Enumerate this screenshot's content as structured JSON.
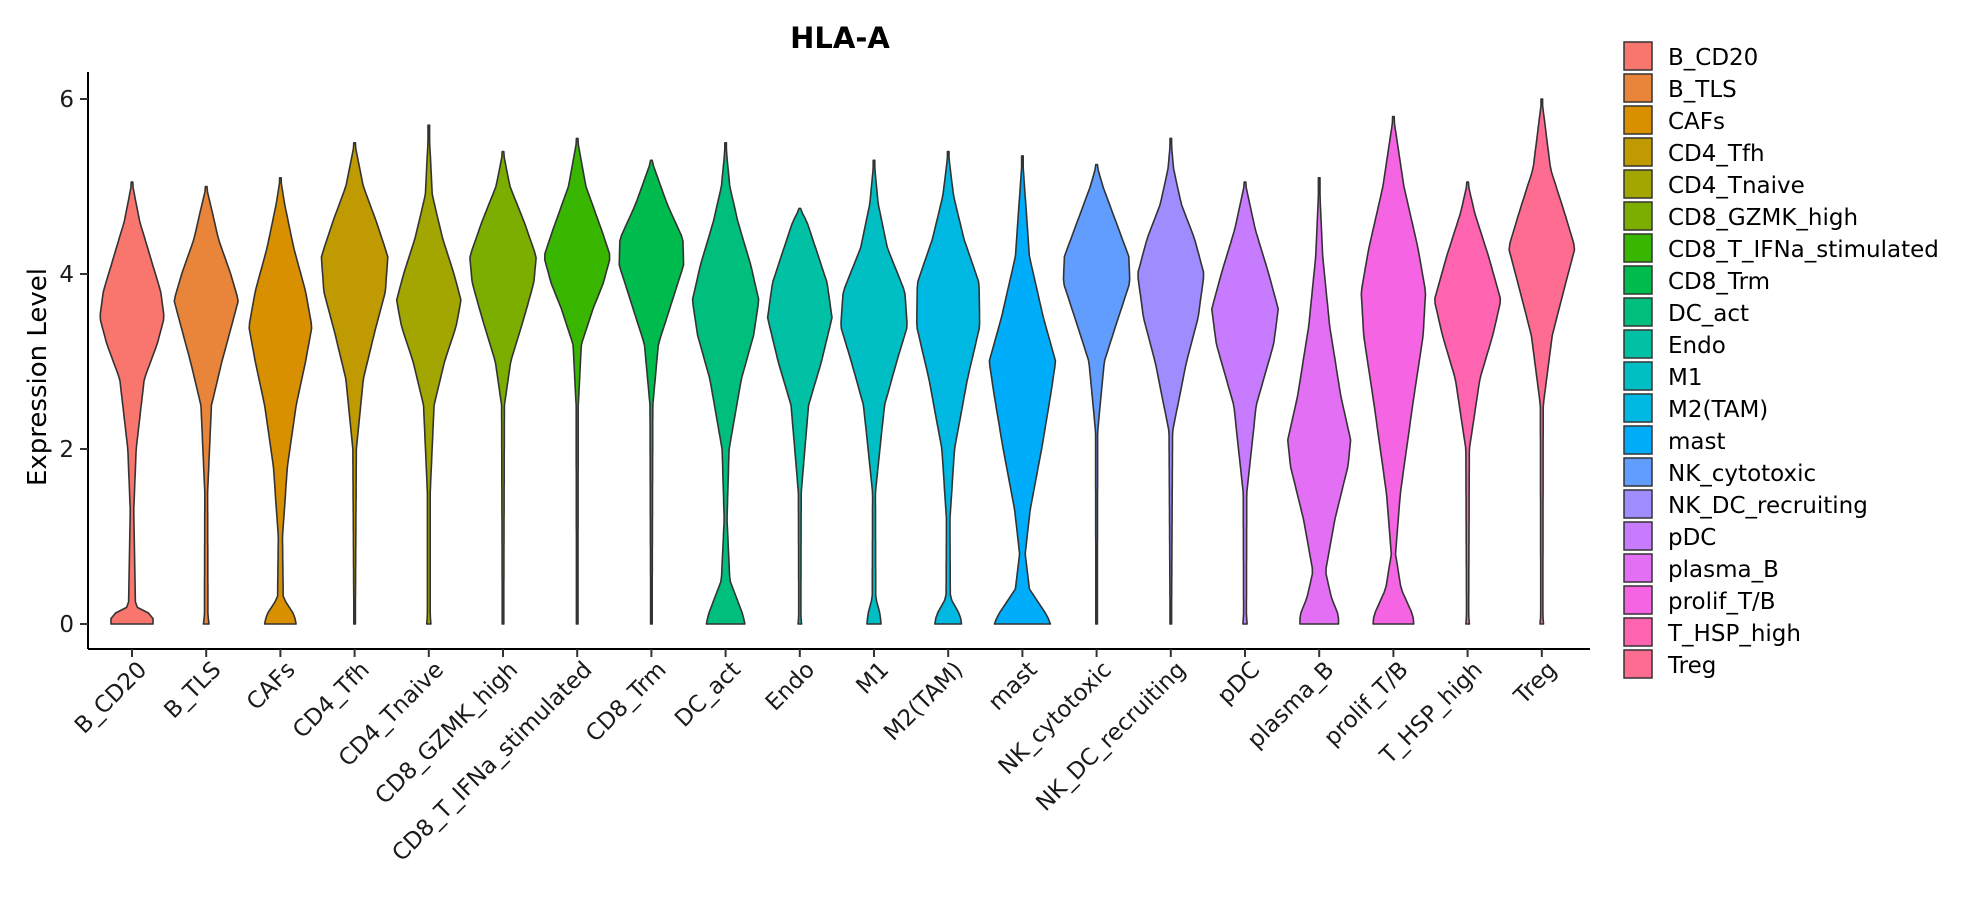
{
  "chart_data": {
    "type": "violin",
    "title": "HLA-A",
    "xlabel": "",
    "ylabel": "Expression Level",
    "ylim": [
      -0.3,
      6.3
    ],
    "yticks": [
      0,
      2,
      4,
      6
    ],
    "legend_position": "right",
    "categories": [
      {
        "name": "B_CD20",
        "color": "#F8766D",
        "max": 5.05,
        "dens": [
          [
            0,
            0.6
          ],
          [
            0.1,
            0.6
          ],
          [
            0.2,
            0.1
          ],
          [
            1.3,
            0.05
          ],
          [
            2.0,
            0.12
          ],
          [
            2.8,
            0.35
          ],
          [
            3.2,
            0.72
          ],
          [
            3.5,
            0.92
          ],
          [
            3.8,
            0.82
          ],
          [
            4.2,
            0.52
          ],
          [
            4.6,
            0.22
          ],
          [
            5.05,
            0
          ]
        ]
      },
      {
        "name": "B_TLS",
        "color": "#E8853A",
        "max": 5.0,
        "dens": [
          [
            0,
            0.08
          ],
          [
            0.1,
            0.05
          ],
          [
            1.5,
            0.04
          ],
          [
            2.5,
            0.15
          ],
          [
            3.0,
            0.45
          ],
          [
            3.4,
            0.72
          ],
          [
            3.7,
            0.92
          ],
          [
            4.0,
            0.7
          ],
          [
            4.4,
            0.35
          ],
          [
            4.8,
            0.12
          ],
          [
            5.0,
            0
          ]
        ]
      },
      {
        "name": "CAFs",
        "color": "#D89000",
        "max": 5.1,
        "dens": [
          [
            0,
            0.45
          ],
          [
            0.1,
            0.4
          ],
          [
            0.3,
            0.08
          ],
          [
            1.0,
            0.06
          ],
          [
            1.8,
            0.2
          ],
          [
            2.5,
            0.45
          ],
          [
            3.0,
            0.72
          ],
          [
            3.4,
            0.9
          ],
          [
            3.8,
            0.72
          ],
          [
            4.3,
            0.38
          ],
          [
            4.8,
            0.12
          ],
          [
            5.1,
            0
          ]
        ]
      },
      {
        "name": "CD4_Tfh",
        "color": "#BF9A00",
        "max": 5.5,
        "dens": [
          [
            0,
            0.02
          ],
          [
            2.0,
            0.05
          ],
          [
            2.8,
            0.25
          ],
          [
            3.3,
            0.55
          ],
          [
            3.8,
            0.88
          ],
          [
            4.2,
            0.95
          ],
          [
            4.6,
            0.62
          ],
          [
            5.0,
            0.25
          ],
          [
            5.5,
            0
          ]
        ]
      },
      {
        "name": "CD4_Tnaive",
        "color": "#A3A500",
        "max": 5.7,
        "dens": [
          [
            0,
            0.06
          ],
          [
            0.1,
            0.04
          ],
          [
            1.5,
            0.04
          ],
          [
            2.5,
            0.15
          ],
          [
            3.0,
            0.45
          ],
          [
            3.4,
            0.78
          ],
          [
            3.7,
            0.92
          ],
          [
            4.0,
            0.72
          ],
          [
            4.4,
            0.4
          ],
          [
            4.9,
            0.1
          ],
          [
            5.7,
            0
          ]
        ]
      },
      {
        "name": "CD8_GZMK_high",
        "color": "#7CAE00",
        "max": 5.4,
        "dens": [
          [
            0,
            0.02
          ],
          [
            2.5,
            0.04
          ],
          [
            3.0,
            0.22
          ],
          [
            3.5,
            0.6
          ],
          [
            3.9,
            0.88
          ],
          [
            4.2,
            0.95
          ],
          [
            4.6,
            0.6
          ],
          [
            5.0,
            0.2
          ],
          [
            5.4,
            0
          ]
        ]
      },
      {
        "name": "CD8_T_IFNa_stimulated",
        "color": "#39B600",
        "max": 5.55,
        "dens": [
          [
            0,
            0.02
          ],
          [
            2.5,
            0.03
          ],
          [
            3.2,
            0.12
          ],
          [
            3.6,
            0.45
          ],
          [
            3.9,
            0.75
          ],
          [
            4.2,
            0.95
          ],
          [
            4.5,
            0.7
          ],
          [
            5.0,
            0.25
          ],
          [
            5.55,
            0
          ]
        ]
      },
      {
        "name": "CD8_Trm",
        "color": "#00BB4E",
        "max": 5.3,
        "dens": [
          [
            0,
            0.02
          ],
          [
            2.5,
            0.04
          ],
          [
            3.2,
            0.2
          ],
          [
            3.7,
            0.6
          ],
          [
            4.1,
            0.92
          ],
          [
            4.4,
            0.9
          ],
          [
            4.8,
            0.45
          ],
          [
            5.3,
            0
          ]
        ]
      },
      {
        "name": "DC_act",
        "color": "#00BF7D",
        "max": 5.5,
        "dens": [
          [
            0,
            0.55
          ],
          [
            0.1,
            0.5
          ],
          [
            0.5,
            0.12
          ],
          [
            1.2,
            0.04
          ],
          [
            2.0,
            0.1
          ],
          [
            2.8,
            0.45
          ],
          [
            3.3,
            0.8
          ],
          [
            3.7,
            0.95
          ],
          [
            4.1,
            0.72
          ],
          [
            4.6,
            0.35
          ],
          [
            5.0,
            0.12
          ],
          [
            5.5,
            0
          ]
        ]
      },
      {
        "name": "Endo",
        "color": "#00C1A3",
        "max": 4.75,
        "dens": [
          [
            0,
            0.05
          ],
          [
            0.1,
            0.03
          ],
          [
            1.5,
            0.04
          ],
          [
            2.5,
            0.25
          ],
          [
            3.0,
            0.62
          ],
          [
            3.5,
            0.92
          ],
          [
            3.9,
            0.78
          ],
          [
            4.3,
            0.45
          ],
          [
            4.6,
            0.2
          ],
          [
            4.75,
            0
          ]
        ]
      },
      {
        "name": "M1",
        "color": "#00BFC4",
        "max": 5.3,
        "dens": [
          [
            0,
            0.2
          ],
          [
            0.1,
            0.18
          ],
          [
            0.3,
            0.05
          ],
          [
            1.5,
            0.04
          ],
          [
            2.5,
            0.3
          ],
          [
            3.0,
            0.65
          ],
          [
            3.4,
            0.95
          ],
          [
            3.8,
            0.88
          ],
          [
            4.3,
            0.38
          ],
          [
            4.8,
            0.12
          ],
          [
            5.3,
            0
          ]
        ]
      },
      {
        "name": "M2(TAM)",
        "color": "#00B9E3",
        "max": 5.4,
        "dens": [
          [
            0,
            0.38
          ],
          [
            0.1,
            0.34
          ],
          [
            0.3,
            0.06
          ],
          [
            1.2,
            0.05
          ],
          [
            2.0,
            0.18
          ],
          [
            2.8,
            0.55
          ],
          [
            3.4,
            0.9
          ],
          [
            3.9,
            0.88
          ],
          [
            4.4,
            0.45
          ],
          [
            4.9,
            0.15
          ],
          [
            5.4,
            0
          ]
        ]
      },
      {
        "name": "mast",
        "color": "#00ADFA",
        "max": 5.35,
        "dens": [
          [
            0,
            0.8
          ],
          [
            0.1,
            0.7
          ],
          [
            0.4,
            0.2
          ],
          [
            0.8,
            0.08
          ],
          [
            1.3,
            0.22
          ],
          [
            2.0,
            0.55
          ],
          [
            2.6,
            0.8
          ],
          [
            3.0,
            0.95
          ],
          [
            3.5,
            0.6
          ],
          [
            4.2,
            0.2
          ],
          [
            5.35,
            0
          ]
        ]
      },
      {
        "name": "NK_cytotoxic",
        "color": "#619CFF",
        "max": 5.25,
        "dens": [
          [
            0,
            0.02
          ],
          [
            2.2,
            0.03
          ],
          [
            3.0,
            0.22
          ],
          [
            3.5,
            0.62
          ],
          [
            3.9,
            0.95
          ],
          [
            4.2,
            0.92
          ],
          [
            4.6,
            0.55
          ],
          [
            5.0,
            0.18
          ],
          [
            5.25,
            0
          ]
        ]
      },
      {
        "name": "NK_DC_recruiting",
        "color": "#9F8CFF",
        "max": 5.55,
        "dens": [
          [
            0,
            0.02
          ],
          [
            2.2,
            0.05
          ],
          [
            3.0,
            0.45
          ],
          [
            3.5,
            0.78
          ],
          [
            4.0,
            0.95
          ],
          [
            4.4,
            0.68
          ],
          [
            4.8,
            0.3
          ],
          [
            5.2,
            0.08
          ],
          [
            5.55,
            0
          ]
        ]
      },
      {
        "name": "pDC",
        "color": "#C77CFF",
        "max": 5.05,
        "dens": [
          [
            0,
            0.06
          ],
          [
            0.1,
            0.04
          ],
          [
            1.5,
            0.05
          ],
          [
            2.5,
            0.32
          ],
          [
            3.2,
            0.82
          ],
          [
            3.6,
            0.95
          ],
          [
            4.0,
            0.68
          ],
          [
            4.5,
            0.3
          ],
          [
            5.05,
            0
          ]
        ]
      },
      {
        "name": "plasma_B",
        "color": "#E36FF4",
        "max": 5.1,
        "dens": [
          [
            0,
            0.55
          ],
          [
            0.1,
            0.55
          ],
          [
            0.3,
            0.35
          ],
          [
            0.6,
            0.18
          ],
          [
            1.2,
            0.45
          ],
          [
            1.8,
            0.82
          ],
          [
            2.1,
            0.9
          ],
          [
            2.6,
            0.62
          ],
          [
            3.4,
            0.3
          ],
          [
            4.2,
            0.1
          ],
          [
            5.1,
            0
          ]
        ]
      },
      {
        "name": "prolif_T/B",
        "color": "#F564E3",
        "max": 5.8,
        "dens": [
          [
            0,
            0.58
          ],
          [
            0.1,
            0.56
          ],
          [
            0.4,
            0.22
          ],
          [
            0.8,
            0.06
          ],
          [
            1.5,
            0.2
          ],
          [
            2.5,
            0.55
          ],
          [
            3.3,
            0.85
          ],
          [
            3.8,
            0.92
          ],
          [
            4.3,
            0.7
          ],
          [
            5.0,
            0.3
          ],
          [
            5.8,
            0
          ]
        ]
      },
      {
        "name": "T_HSP_high",
        "color": "#FF64B0",
        "max": 5.05,
        "dens": [
          [
            0,
            0.05
          ],
          [
            0.1,
            0.03
          ],
          [
            2.0,
            0.05
          ],
          [
            2.8,
            0.35
          ],
          [
            3.3,
            0.72
          ],
          [
            3.7,
            0.95
          ],
          [
            4.2,
            0.6
          ],
          [
            4.7,
            0.2
          ],
          [
            5.05,
            0
          ]
        ]
      },
      {
        "name": "Treg",
        "color": "#FF6C91",
        "max": 6.0,
        "dens": [
          [
            0,
            0.05
          ],
          [
            0.1,
            0.03
          ],
          [
            2.5,
            0.04
          ],
          [
            3.3,
            0.3
          ],
          [
            3.8,
            0.62
          ],
          [
            4.3,
            0.95
          ],
          [
            4.7,
            0.65
          ],
          [
            5.2,
            0.25
          ],
          [
            6.0,
            0
          ]
        ]
      }
    ]
  }
}
